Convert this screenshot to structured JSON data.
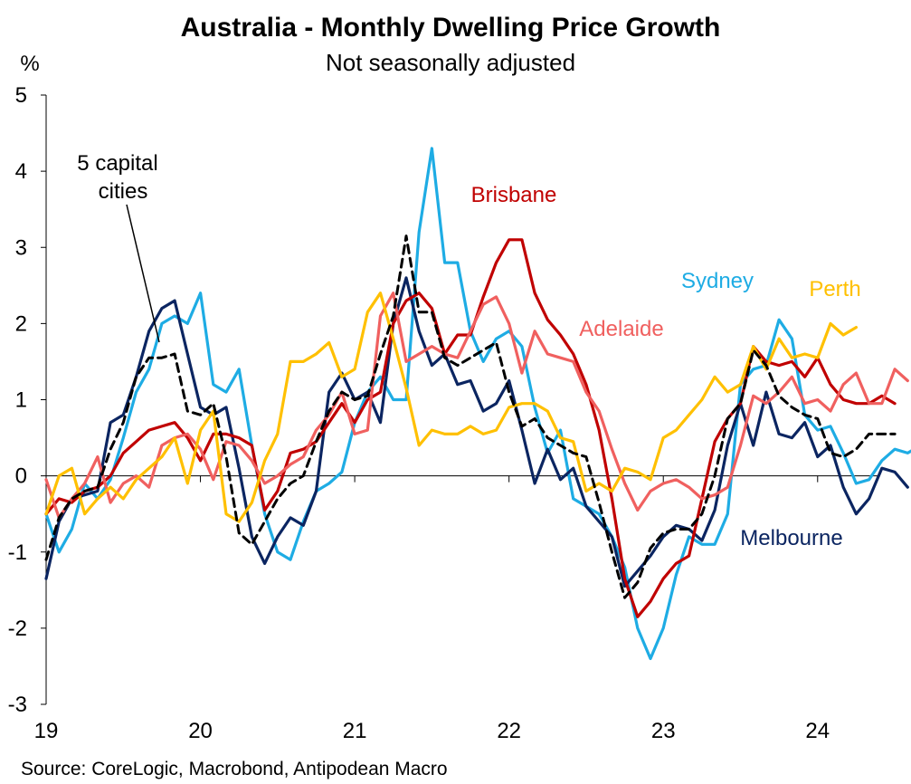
{
  "chart_data": {
    "type": "line",
    "title": "Australia - Monthly Dwelling Price Growth",
    "subtitle": "Not seasonally adjusted",
    "ylabel": "%",
    "ylim": [
      -3,
      5
    ],
    "yticks": [
      "5",
      "4",
      "3",
      "2",
      "1",
      "0",
      "-1",
      "-2",
      "-3"
    ],
    "xlim": [
      2019.0,
      2024.4
    ],
    "xticks": [
      {
        "x": 2019,
        "label": "19"
      },
      {
        "x": 2020,
        "label": "20"
      },
      {
        "x": 2021,
        "label": "21"
      },
      {
        "x": 2022,
        "label": "22"
      },
      {
        "x": 2023,
        "label": "23"
      },
      {
        "x": 2024,
        "label": "24"
      }
    ],
    "source": "Source: CoreLogic, Macrobond, Antipodean Macro",
    "annotation": {
      "line1": "5 capital",
      "line2": "cities"
    },
    "series": [
      {
        "name": "Sydney",
        "color": "#1EACE4",
        "dashed": false,
        "values": [
          -0.5,
          -1.0,
          -0.7,
          -0.1,
          -0.3,
          -0.05,
          0.5,
          1.1,
          1.4,
          2.0,
          2.1,
          2.0,
          2.4,
          1.2,
          1.1,
          1.4,
          0.4,
          -0.5,
          -1.0,
          -1.1,
          -0.6,
          -0.2,
          -0.1,
          0.05,
          0.7,
          1.1,
          1.3,
          1.0,
          1.0,
          3.2,
          4.3,
          2.8,
          2.8,
          1.9,
          1.5,
          1.8,
          1.9,
          1.7,
          0.9,
          0.3,
          0.6,
          -0.3,
          -0.4,
          -0.5,
          -0.8,
          -1.2,
          -2.0,
          -2.4,
          -2.0,
          -1.3,
          -0.8,
          -0.9,
          -0.9,
          -0.5,
          1.2,
          1.4,
          1.45,
          2.05,
          1.8,
          0.8,
          0.6,
          0.65,
          0.3,
          -0.1,
          -0.05,
          0.2,
          0.35,
          0.3,
          0.4
        ]
      },
      {
        "name": "Melbourne",
        "color": "#0B2561",
        "dashed": false,
        "values": [
          -1.35,
          -0.6,
          -0.3,
          -0.25,
          -0.2,
          0.7,
          0.8,
          1.3,
          1.9,
          2.2,
          2.3,
          1.6,
          0.9,
          0.8,
          0.9,
          0.1,
          -0.8,
          -1.15,
          -0.8,
          -0.55,
          -0.65,
          -0.2,
          1.1,
          1.35,
          1.0,
          1.1,
          0.7,
          2.0,
          2.6,
          1.9,
          1.45,
          1.6,
          1.2,
          1.25,
          0.85,
          0.95,
          1.25,
          0.6,
          -0.1,
          0.35,
          -0.05,
          0.1,
          -0.4,
          -0.6,
          -0.8,
          -1.45,
          -1.25,
          -1.05,
          -0.8,
          -0.65,
          -0.7,
          -0.85,
          -0.45,
          0.4,
          0.95,
          0.4,
          1.1,
          0.55,
          0.5,
          0.7,
          0.25,
          0.4,
          -0.15,
          -0.5,
          -0.3,
          0.1,
          0.05,
          -0.15
        ]
      },
      {
        "name": "Brisbane",
        "color": "#C00000",
        "dashed": false,
        "values": [
          -0.5,
          -0.3,
          -0.35,
          -0.2,
          -0.15,
          0.0,
          0.3,
          0.45,
          0.6,
          0.65,
          0.7,
          0.5,
          0.2,
          0.55,
          0.55,
          0.5,
          0.4,
          -0.45,
          -0.2,
          0.3,
          0.35,
          0.45,
          0.7,
          0.95,
          0.7,
          1.0,
          1.1,
          2.0,
          2.3,
          2.4,
          2.2,
          1.6,
          1.85,
          1.85,
          2.35,
          2.8,
          3.1,
          3.1,
          2.4,
          2.05,
          1.85,
          1.6,
          1.2,
          0.6,
          -0.3,
          -1.35,
          -1.85,
          -1.65,
          -1.35,
          -1.15,
          -1.05,
          -0.3,
          0.45,
          0.75,
          0.95,
          1.7,
          1.5,
          1.45,
          1.5,
          1.3,
          1.55,
          1.2,
          1.0,
          0.95,
          0.95,
          1.05,
          0.95
        ]
      },
      {
        "name": "Adelaide",
        "color": "#F0605F",
        "dashed": false,
        "values": [
          -0.05,
          -0.55,
          -0.3,
          -0.1,
          0.25,
          -0.35,
          -0.1,
          0.0,
          -0.15,
          0.4,
          0.5,
          0.55,
          0.35,
          -0.05,
          0.45,
          0.4,
          0.2,
          -0.1,
          0.0,
          0.15,
          0.25,
          0.6,
          0.8,
          1.1,
          0.55,
          0.6,
          2.1,
          2.4,
          1.5,
          1.6,
          1.7,
          1.6,
          1.55,
          1.9,
          2.25,
          2.35,
          2.0,
          1.35,
          1.9,
          1.6,
          1.55,
          1.5,
          1.1,
          0.85,
          0.35,
          -0.1,
          -0.45,
          -0.2,
          -0.1,
          -0.05,
          -0.15,
          -0.3,
          -0.25,
          -0.15,
          0.4,
          1.05,
          0.95,
          1.1,
          1.3,
          0.95,
          1.0,
          0.85,
          1.2,
          1.35,
          0.95,
          0.95,
          1.4,
          1.25
        ]
      },
      {
        "name": "Perth",
        "color": "#FFC000",
        "dashed": false,
        "values": [
          -0.5,
          0.0,
          0.1,
          -0.5,
          -0.3,
          -0.15,
          -0.3,
          -0.05,
          0.1,
          0.25,
          0.5,
          -0.1,
          0.6,
          0.85,
          -0.5,
          -0.6,
          -0.35,
          0.2,
          0.55,
          1.5,
          1.5,
          1.6,
          1.75,
          1.3,
          1.4,
          2.15,
          2.4,
          1.8,
          1.15,
          0.4,
          0.6,
          0.55,
          0.55,
          0.65,
          0.55,
          0.6,
          0.9,
          0.95,
          0.95,
          0.85,
          0.5,
          0.45,
          -0.2,
          -0.1,
          -0.2,
          0.1,
          0.05,
          -0.05,
          0.5,
          0.6,
          0.8,
          1.0,
          1.3,
          1.1,
          1.2,
          1.7,
          1.4,
          1.8,
          1.55,
          1.6,
          1.55,
          2.0,
          1.85,
          1.95
        ]
      },
      {
        "name": "5 capital cities",
        "color": "#000000",
        "dashed": true,
        "values": [
          -1.1,
          -0.55,
          -0.3,
          -0.2,
          -0.15,
          0.35,
          0.7,
          1.3,
          1.55,
          1.55,
          1.6,
          0.85,
          0.8,
          0.95,
          0.25,
          -0.75,
          -0.9,
          -0.6,
          -0.3,
          -0.1,
          0.0,
          0.45,
          0.85,
          1.1,
          1.0,
          1.05,
          1.6,
          2.1,
          3.15,
          2.15,
          2.15,
          1.55,
          1.45,
          1.55,
          1.65,
          1.75,
          1.1,
          0.65,
          0.75,
          0.5,
          0.4,
          0.3,
          0.25,
          -0.35,
          -1.0,
          -1.6,
          -1.4,
          -0.95,
          -0.75,
          -0.7,
          -0.7,
          -0.5,
          0.0,
          0.75,
          0.95,
          1.65,
          1.45,
          1.05,
          0.9,
          0.8,
          0.75,
          0.3,
          0.25,
          0.35,
          0.55,
          0.55,
          0.55
        ]
      }
    ],
    "series_labels": [
      {
        "series": "Brisbane",
        "text": "Brisbane"
      },
      {
        "series": "Sydney",
        "text": "Sydney"
      },
      {
        "series": "Perth",
        "text": "Perth"
      },
      {
        "series": "Adelaide",
        "text": "Adelaide"
      },
      {
        "series": "Melbourne",
        "text": "Melbourne"
      }
    ]
  }
}
